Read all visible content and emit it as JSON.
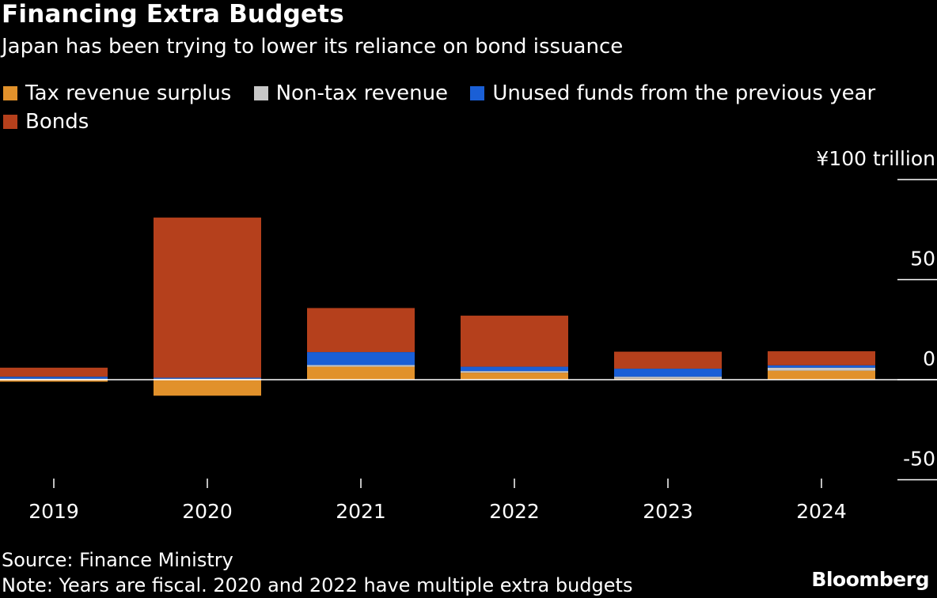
{
  "title": "Financing Extra Budgets",
  "subtitle": "Japan has been trying to lower its reliance on bond issuance",
  "source": "Source: Finance Ministry",
  "note": "Note: Years are fiscal. 2020 and 2022 have multiple extra budgets",
  "brand": "Bloomberg",
  "colors": {
    "background": "#000000",
    "tax_revenue_surplus": "#e1912b",
    "non_tax_revenue": "#c8c8c8",
    "unused_funds": "#1a5fd6",
    "bonds": "#b5401c",
    "axis": "#ffffff"
  },
  "chart_data": {
    "type": "bar",
    "stacked": true,
    "categories": [
      "2019",
      "2020",
      "2021",
      "2022",
      "2023",
      "2024"
    ],
    "series": [
      {
        "name": "Tax revenue surplus",
        "color": "#e1912b",
        "values": [
          -1.0,
          -8.0,
          6.5,
          3.5,
          0.5,
          4.5
        ]
      },
      {
        "name": "Non-tax revenue",
        "color": "#c8c8c8",
        "values": [
          0.5,
          0.5,
          0.8,
          0.8,
          1.0,
          1.5
        ]
      },
      {
        "name": "Unused funds from the previous year",
        "color": "#1a5fd6",
        "values": [
          1.0,
          0.5,
          6.5,
          2.2,
          4.0,
          1.2
        ]
      },
      {
        "name": "Bonds",
        "color": "#b5401c",
        "values": [
          4.5,
          80.0,
          22.0,
          25.5,
          8.5,
          7.0
        ]
      }
    ],
    "ylabel": "¥100 trillion",
    "yticks": [
      {
        "value": 100,
        "label": "¥100 trillion"
      },
      {
        "value": 50,
        "label": "50"
      },
      {
        "value": 0,
        "label": "0"
      },
      {
        "value": -50,
        "label": "-50"
      }
    ],
    "ylim": [
      -50,
      100
    ],
    "legend_position": "top-left"
  }
}
